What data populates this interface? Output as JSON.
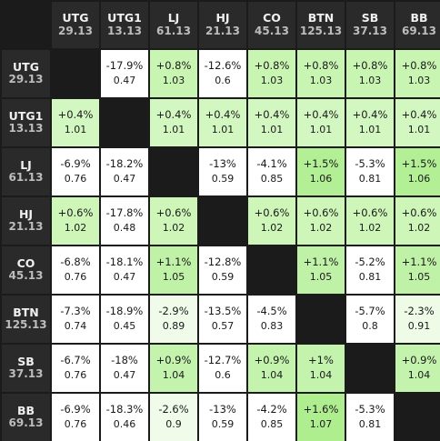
{
  "columns": [
    {
      "pos": "UTG",
      "stack": "29.13"
    },
    {
      "pos": "UTG1",
      "stack": "13.13"
    },
    {
      "pos": "LJ",
      "stack": "61.13"
    },
    {
      "pos": "HJ",
      "stack": "21.13"
    },
    {
      "pos": "CO",
      "stack": "45.13"
    },
    {
      "pos": "BTN",
      "stack": "125.13"
    },
    {
      "pos": "SB",
      "stack": "37.13"
    },
    {
      "pos": "BB",
      "stack": "69.13"
    }
  ],
  "rows": [
    {
      "pos": "UTG",
      "stack": "29.13",
      "cells": [
        null,
        {
          "d": "-17.9%",
          "v": "0.47",
          "bg": "#ffffff"
        },
        {
          "d": "+0.8%",
          "v": "1.03",
          "bg": "#c9f5b3"
        },
        {
          "d": "-12.6%",
          "v": "0.6",
          "bg": "#ffffff"
        },
        {
          "d": "+0.8%",
          "v": "1.03",
          "bg": "#c9f5b3"
        },
        {
          "d": "+0.8%",
          "v": "1.03",
          "bg": "#c9f5b3"
        },
        {
          "d": "+0.8%",
          "v": "1.03",
          "bg": "#c9f5b3"
        },
        {
          "d": "+0.8%",
          "v": "1.03",
          "bg": "#c9f5b3"
        }
      ]
    },
    {
      "pos": "UTG1",
      "stack": "13.13",
      "cells": [
        {
          "d": "+0.4%",
          "v": "1.01",
          "bg": "#d3f7c1"
        },
        null,
        {
          "d": "+0.4%",
          "v": "1.01",
          "bg": "#d3f7c1"
        },
        {
          "d": "+0.4%",
          "v": "1.01",
          "bg": "#d3f7c1"
        },
        {
          "d": "+0.4%",
          "v": "1.01",
          "bg": "#d3f7c1"
        },
        {
          "d": "+0.4%",
          "v": "1.01",
          "bg": "#d3f7c1"
        },
        {
          "d": "+0.4%",
          "v": "1.01",
          "bg": "#d3f7c1"
        },
        {
          "d": "+0.4%",
          "v": "1.01",
          "bg": "#d3f7c1"
        }
      ]
    },
    {
      "pos": "LJ",
      "stack": "61.13",
      "cells": [
        {
          "d": "-6.9%",
          "v": "0.76",
          "bg": "#ffffff"
        },
        {
          "d": "-18.2%",
          "v": "0.47",
          "bg": "#ffffff"
        },
        null,
        {
          "d": "-13%",
          "v": "0.59",
          "bg": "#ffffff"
        },
        {
          "d": "-4.1%",
          "v": "0.85",
          "bg": "#ffffff"
        },
        {
          "d": "+1.5%",
          "v": "1.06",
          "bg": "#b2ef95"
        },
        {
          "d": "-5.3%",
          "v": "0.81",
          "bg": "#ffffff"
        },
        {
          "d": "+1.5%",
          "v": "1.06",
          "bg": "#b2ef95"
        }
      ]
    },
    {
      "pos": "HJ",
      "stack": "21.13",
      "cells": [
        {
          "d": "+0.6%",
          "v": "1.02",
          "bg": "#cdf6b8"
        },
        {
          "d": "-17.8%",
          "v": "0.48",
          "bg": "#ffffff"
        },
        {
          "d": "+0.6%",
          "v": "1.02",
          "bg": "#cdf6b8"
        },
        null,
        {
          "d": "+0.6%",
          "v": "1.02",
          "bg": "#cdf6b8"
        },
        {
          "d": "+0.6%",
          "v": "1.02",
          "bg": "#cdf6b8"
        },
        {
          "d": "+0.6%",
          "v": "1.02",
          "bg": "#cdf6b8"
        },
        {
          "d": "+0.6%",
          "v": "1.02",
          "bg": "#cdf6b8"
        }
      ]
    },
    {
      "pos": "CO",
      "stack": "45.13",
      "cells": [
        {
          "d": "-6.8%",
          "v": "0.76",
          "bg": "#ffffff"
        },
        {
          "d": "-18.1%",
          "v": "0.47",
          "bg": "#ffffff"
        },
        {
          "d": "+1.1%",
          "v": "1.05",
          "bg": "#bff2a7"
        },
        {
          "d": "-12.8%",
          "v": "0.59",
          "bg": "#ffffff"
        },
        null,
        {
          "d": "+1.1%",
          "v": "1.05",
          "bg": "#bff2a7"
        },
        {
          "d": "-5.2%",
          "v": "0.81",
          "bg": "#ffffff"
        },
        {
          "d": "+1.1%",
          "v": "1.05",
          "bg": "#bff2a7"
        }
      ]
    },
    {
      "pos": "BTN",
      "stack": "125.13",
      "cells": [
        {
          "d": "-7.3%",
          "v": "0.74",
          "bg": "#ffffff"
        },
        {
          "d": "-18.9%",
          "v": "0.45",
          "bg": "#ffffff"
        },
        {
          "d": "-2.9%",
          "v": "0.89",
          "bg": "#f0fbea"
        },
        {
          "d": "-13.5%",
          "v": "0.57",
          "bg": "#ffffff"
        },
        {
          "d": "-4.5%",
          "v": "0.83",
          "bg": "#ffffff"
        },
        null,
        {
          "d": "-5.7%",
          "v": "0.8",
          "bg": "#ffffff"
        },
        {
          "d": "-2.3%",
          "v": "0.91",
          "bg": "#eefbe7"
        }
      ]
    },
    {
      "pos": "SB",
      "stack": "37.13",
      "cells": [
        {
          "d": "-6.7%",
          "v": "0.76",
          "bg": "#ffffff"
        },
        {
          "d": "-18%",
          "v": "0.47",
          "bg": "#ffffff"
        },
        {
          "d": "+0.9%",
          "v": "1.04",
          "bg": "#c4f3ad"
        },
        {
          "d": "-12.7%",
          "v": "0.6",
          "bg": "#ffffff"
        },
        {
          "d": "+0.9%",
          "v": "1.04",
          "bg": "#c4f3ad"
        },
        {
          "d": "+1%",
          "v": "1.04",
          "bg": "#c4f3ad"
        },
        null,
        {
          "d": "+0.9%",
          "v": "1.04",
          "bg": "#c4f3ad"
        }
      ]
    },
    {
      "pos": "BB",
      "stack": "69.13",
      "cells": [
        {
          "d": "-6.9%",
          "v": "0.76",
          "bg": "#ffffff"
        },
        {
          "d": "-18.3%",
          "v": "0.46",
          "bg": "#ffffff"
        },
        {
          "d": "-2.6%",
          "v": "0.9",
          "bg": "#f0fbea"
        },
        {
          "d": "-13%",
          "v": "0.59",
          "bg": "#ffffff"
        },
        {
          "d": "-4.2%",
          "v": "0.85",
          "bg": "#ffffff"
        },
        {
          "d": "+1.6%",
          "v": "1.07",
          "bg": "#aeee8f"
        },
        {
          "d": "-5.3%",
          "v": "0.81",
          "bg": "#ffffff"
        },
        null
      ]
    }
  ],
  "colors": {
    "background": "#1b1b1b",
    "header_bg": "#2a2a2a",
    "diagonal": "#1b1b1b",
    "negative": "#ffffff",
    "positive_accent": "#b2ef95"
  }
}
